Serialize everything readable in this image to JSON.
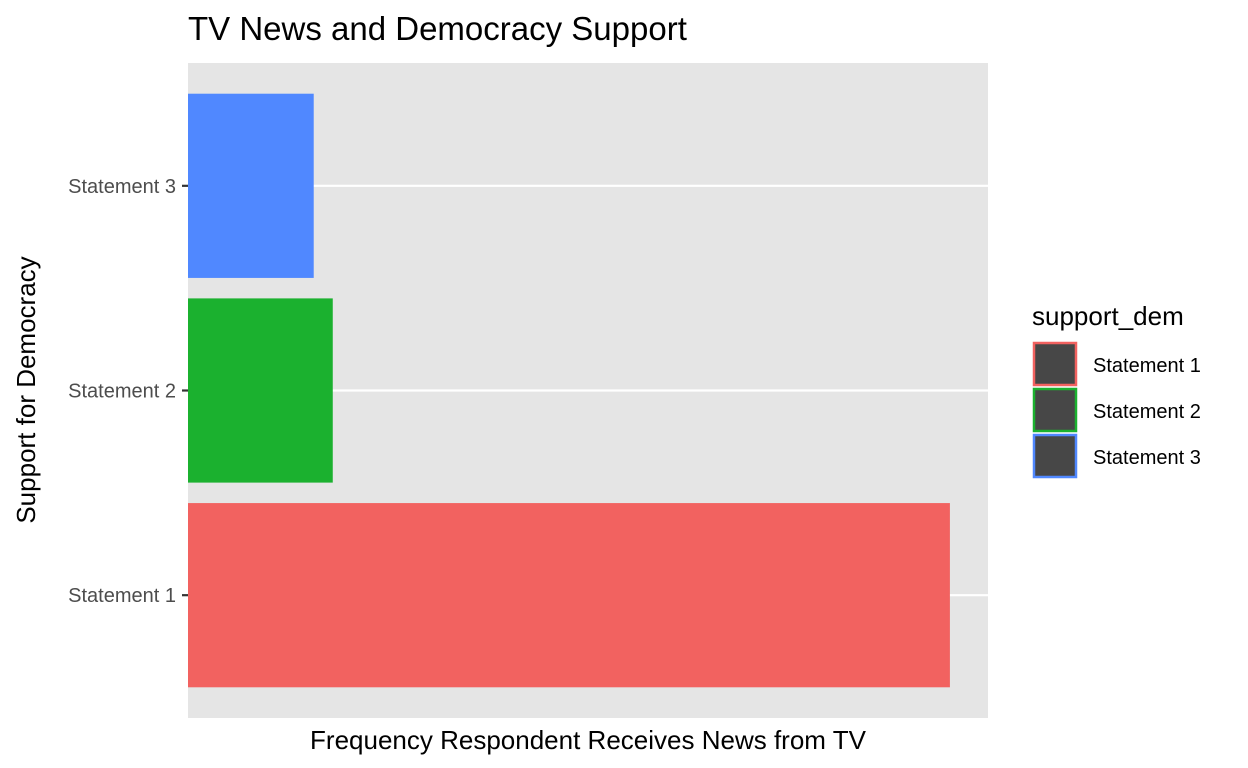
{
  "chart_data": {
    "type": "bar",
    "orientation": "horizontal",
    "title": "TV News and Democracy Support",
    "xlabel": "Frequency Respondent Receives News from TV",
    "ylabel": "Support for Democracy",
    "categories": [
      "Statement 1",
      "Statement 2",
      "Statement 3"
    ],
    "values": [
      10,
      1.9,
      1.65
    ],
    "xlim": [
      0,
      10.5
    ],
    "x_ticks_visible": false,
    "grid": true,
    "legend_title": "support_dem",
    "legend_position": "right",
    "colors": [
      "#F26260",
      "#1BB12F",
      "#5088FF"
    ],
    "legend_key_fill": "#474747",
    "panel_background": "#E5E5E5"
  }
}
